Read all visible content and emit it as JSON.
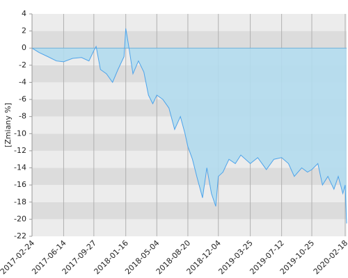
{
  "chart_data": {
    "type": "area",
    "y_label": "[Zmiany %]",
    "x": [
      "2017-02-24",
      "2017-03-20",
      "2017-04-20",
      "2017-05-20",
      "2017-06-14",
      "2017-07-15",
      "2017-08-15",
      "2017-09-10",
      "2017-09-27",
      "2017-10-05",
      "2017-10-20",
      "2017-11-10",
      "2017-12-01",
      "2017-12-20",
      "2018-01-10",
      "2018-01-16",
      "2018-01-25",
      "2018-02-10",
      "2018-03-01",
      "2018-03-20",
      "2018-04-05",
      "2018-04-20",
      "2018-05-04",
      "2018-05-25",
      "2018-06-15",
      "2018-07-05",
      "2018-07-25",
      "2018-08-10",
      "2018-08-20",
      "2018-09-05",
      "2018-09-20",
      "2018-10-10",
      "2018-10-25",
      "2018-11-10",
      "2018-11-25",
      "2018-12-04",
      "2018-12-20",
      "2019-01-10",
      "2019-02-01",
      "2019-02-20",
      "2019-03-25",
      "2019-04-20",
      "2019-05-20",
      "2019-06-15",
      "2019-07-12",
      "2019-08-05",
      "2019-08-25",
      "2019-09-20",
      "2019-10-10",
      "2019-10-25",
      "2019-11-15",
      "2019-12-01",
      "2019-12-20",
      "2020-01-10",
      "2020-01-25",
      "2020-02-10",
      "2020-02-18",
      "2020-02-23"
    ],
    "series": [
      {
        "color": "#4da3ea",
        "fill": "#b3dcee",
        "values": [
          0,
          -0.5,
          -1,
          -1.5,
          -1.6,
          -1.2,
          -1.1,
          -1.5,
          -0.3,
          0.2,
          -2.5,
          -3,
          -4,
          -2.5,
          -1,
          2.3,
          0.5,
          -3,
          -1.5,
          -2.8,
          -5.5,
          -6.5,
          -5.5,
          -6,
          -7,
          -9.5,
          -8,
          -10,
          -11.5,
          -13,
          -15,
          -17.5,
          -14,
          -17,
          -18.5,
          -15,
          -14.5,
          -13,
          -13.5,
          -12.5,
          -13.5,
          -12.8,
          -14.2,
          -13,
          -12.8,
          -13.5,
          -15,
          -14,
          -14.5,
          -14.2,
          -13.5,
          -16,
          -15,
          -16.5,
          -15,
          -17,
          -16,
          -20.5
        ]
      }
    ],
    "xlim": [
      "2017-02-24",
      "2020-02-23"
    ],
    "xticks": [
      "2017-02-24",
      "2017-06-14",
      "2017-09-27",
      "2018-01-16",
      "2018-05-04",
      "2018-08-20",
      "2018-12-04",
      "2019-03-25",
      "2019-07-12",
      "2019-10-25",
      "2020-02-18"
    ],
    "ylim": [
      -22,
      4
    ],
    "yticks": [
      -22,
      -20,
      -18,
      -16,
      -14,
      -12,
      -10,
      -8,
      -6,
      -4,
      -2,
      0,
      2,
      4
    ],
    "band_colors": [
      "#ececec",
      "#dcdcdc"
    ],
    "grid": true
  }
}
